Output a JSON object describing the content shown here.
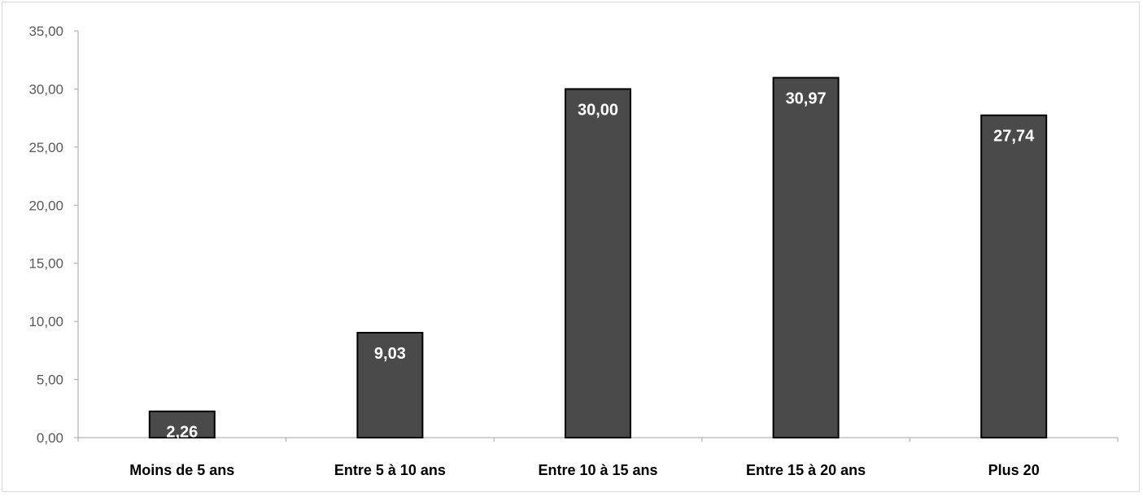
{
  "chart_data": {
    "type": "bar",
    "categories": [
      "Moins de 5 ans",
      "Entre 5 à 10 ans",
      "Entre 10 à 15 ans",
      "Entre 15 à 20 ans",
      "Plus 20"
    ],
    "values": [
      2.26,
      9.03,
      30.0,
      30.97,
      27.74
    ],
    "value_labels": [
      "2,26",
      "9,03",
      "30,00",
      "30,97",
      "27,74"
    ],
    "y_ticks": [
      "0,00",
      "5,00",
      "10,00",
      "15,00",
      "20,00",
      "25,00",
      "30,00",
      "35,00"
    ],
    "ylim": [
      0,
      35
    ],
    "grid": false,
    "legend": "none",
    "title": "",
    "xlabel": "",
    "ylabel": "",
    "colors": {
      "bar_fill": "#4a4a4a",
      "bar_stroke": "#000000",
      "axis": "#a6a6a6",
      "data_label": "#ffffff"
    }
  }
}
